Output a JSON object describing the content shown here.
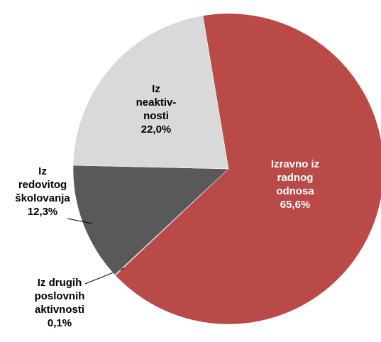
{
  "chart_data": {
    "type": "pie",
    "categories": [
      "Izravno iz\nradnog\nodnosa",
      "Iz drugih\nposlovnih\naktivnosti",
      "Iz\nredovitog\nškolovanja",
      "Iz\nneaktiv-\nnosti"
    ],
    "values": [
      65.6,
      0.1,
      12.3,
      22.0
    ],
    "value_labels": [
      "65,6%",
      "0,1%",
      "12,3%",
      "22,0%"
    ],
    "colors": [
      "#b94a48",
      "#d8b0ae",
      "#595959",
      "#d9d9d9"
    ]
  }
}
